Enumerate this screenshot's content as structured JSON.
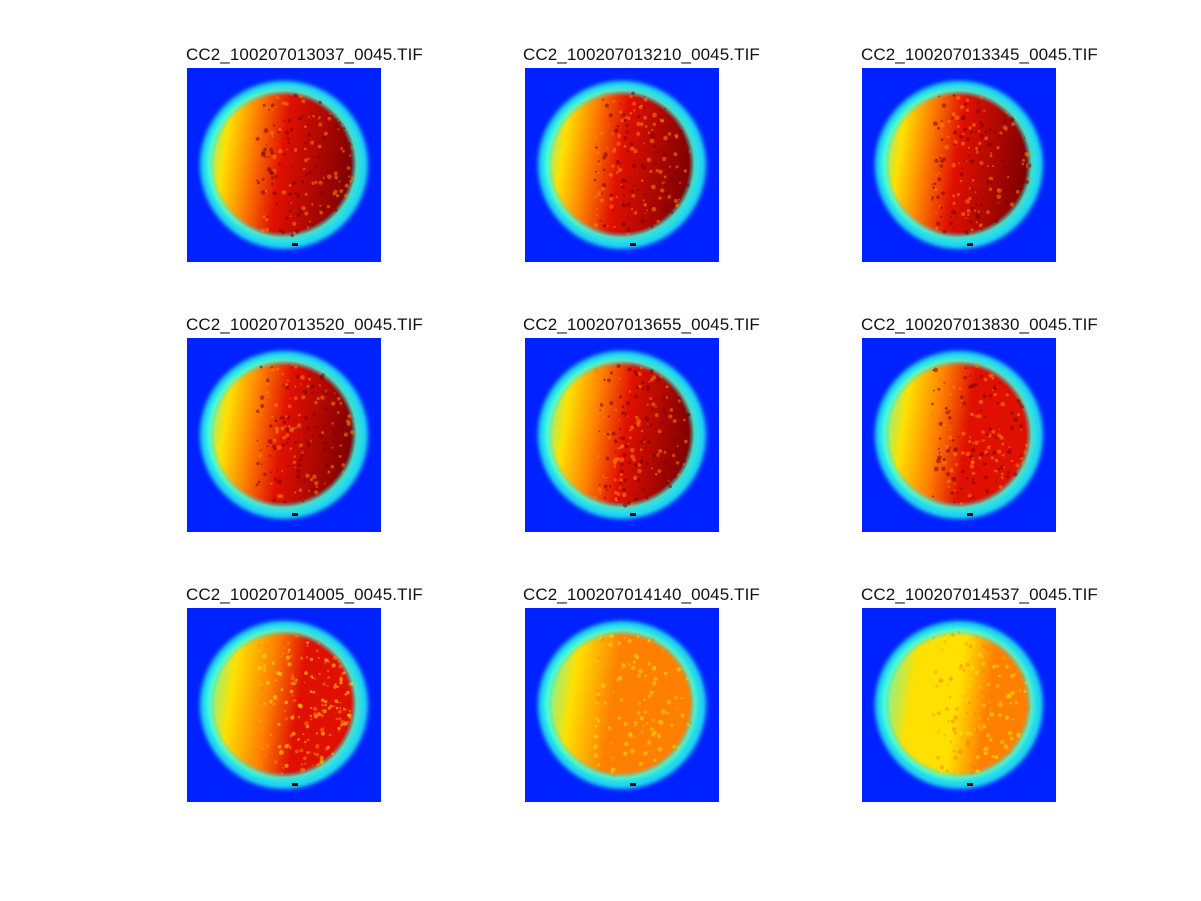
{
  "figure": {
    "panels": [
      {
        "title": "CC2_100207013037_0045.TIF",
        "dark_level": 1.0
      },
      {
        "title": "CC2_100207013210_0045.TIF",
        "dark_level": 1.0
      },
      {
        "title": "CC2_100207013345_0045.TIF",
        "dark_level": 1.0
      },
      {
        "title": "CC2_100207013520_0045.TIF",
        "dark_level": 0.95
      },
      {
        "title": "CC2_100207013655_0045.TIF",
        "dark_level": 0.85
      },
      {
        "title": "CC2_100207013830_0045.TIF",
        "dark_level": 0.72
      },
      {
        "title": "CC2_100207014005_0045.TIF",
        "dark_level": 0.55
      },
      {
        "title": "CC2_100207014140_0045.TIF",
        "dark_level": 0.38
      },
      {
        "title": "CC2_100207014537_0045.TIF",
        "dark_level": 0.2
      }
    ],
    "colors": {
      "background": "#0022ff",
      "ring": "#20d8f0",
      "cyan": "#40ffe0",
      "yellow": "#ffe000",
      "orange": "#ff8000",
      "red": "#e01000",
      "dark_red": "#800000"
    }
  }
}
